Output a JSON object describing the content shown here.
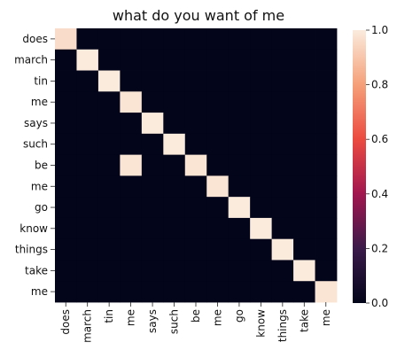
{
  "chart_data": {
    "type": "heatmap",
    "title": "what do you want of me",
    "x_labels": [
      "does",
      "march",
      "tin",
      "me",
      "says",
      "such",
      "be",
      "me",
      "go",
      "know",
      "things",
      "take",
      "me"
    ],
    "y_labels": [
      "does",
      "march",
      "tin",
      "me",
      "says",
      "such",
      "be",
      "me",
      "go",
      "know",
      "things",
      "take",
      "me"
    ],
    "values": [
      [
        0.96,
        0,
        0,
        0,
        0,
        0,
        0,
        0,
        0,
        0,
        0,
        0,
        0
      ],
      [
        0,
        1.0,
        0,
        0,
        0,
        0,
        0,
        0,
        0,
        0,
        0,
        0,
        0
      ],
      [
        0,
        0,
        1.0,
        0,
        0,
        0,
        0,
        0,
        0,
        0,
        0,
        0,
        0
      ],
      [
        0,
        0,
        0,
        0.98,
        0,
        0,
        0,
        0,
        0,
        0,
        0,
        0,
        0
      ],
      [
        0,
        0,
        0,
        0,
        1.0,
        0,
        0,
        0,
        0,
        0,
        0,
        0,
        0
      ],
      [
        0,
        0,
        0,
        0,
        0,
        1.0,
        0,
        0,
        0,
        0,
        0,
        0,
        0
      ],
      [
        0,
        0,
        0,
        0.98,
        0,
        0,
        0.98,
        0,
        0,
        0,
        0,
        0,
        0
      ],
      [
        0,
        0,
        0,
        0,
        0,
        0,
        0,
        0.98,
        0,
        0,
        0,
        0,
        0
      ],
      [
        0,
        0,
        0,
        0,
        0,
        0,
        0,
        0,
        1.0,
        0,
        0,
        0,
        0
      ],
      [
        0,
        0,
        0,
        0,
        0,
        0,
        0,
        0,
        0,
        1.0,
        0,
        0,
        0
      ],
      [
        0,
        0,
        0,
        0,
        0,
        0,
        0,
        0,
        0,
        0,
        1.0,
        0,
        0
      ],
      [
        0,
        0,
        0,
        0,
        0,
        0,
        0,
        0,
        0,
        0,
        0,
        1.0,
        0
      ],
      [
        0,
        0,
        0,
        0,
        0,
        0,
        0,
        0,
        0,
        0,
        0,
        0,
        0.98
      ]
    ],
    "vmin": 0,
    "vmax": 1,
    "colorbar_ticks": [
      "0.0",
      "0.2",
      "0.4",
      "0.6",
      "0.8",
      "1.0"
    ],
    "colormap": "rocket",
    "grid": false
  }
}
